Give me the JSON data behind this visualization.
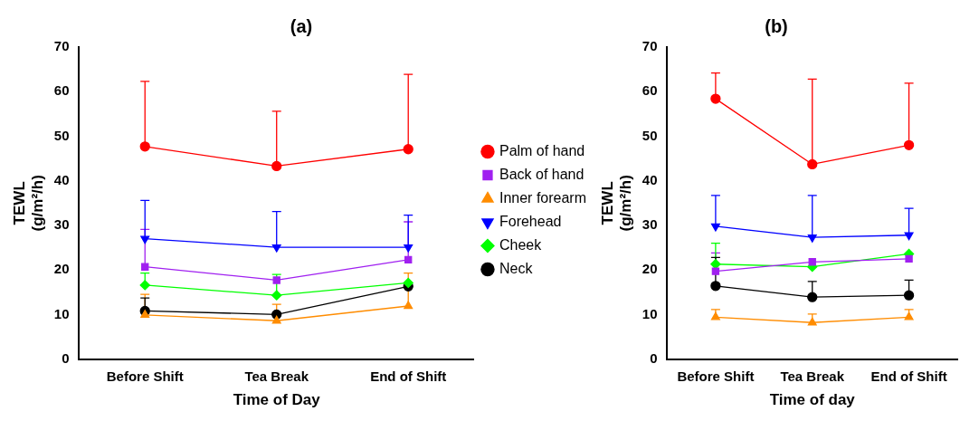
{
  "chart_data": [
    {
      "type": "line",
      "title": "(a)",
      "xlabel": "Time of Day",
      "ylabel": "TEWL (g/m²/h)",
      "categories": [
        "Before Shift",
        "Tea Break",
        "End of Shift"
      ],
      "ylim": [
        0,
        70
      ],
      "yticks": [
        0,
        10,
        20,
        30,
        40,
        50,
        60,
        70
      ],
      "grid": false,
      "legend": "right",
      "series": [
        {
          "name": "Palm of hand",
          "color": "#ff0000",
          "marker": "circle",
          "values": [
            47.7,
            43.3,
            47.1
          ],
          "errors": [
            [
              47.7,
              62.3
            ],
            [
              43.3,
              55.6
            ],
            [
              47.1,
              63.9
            ]
          ]
        },
        {
          "name": "Back of hand",
          "color": "#a020f0",
          "marker": "square",
          "values": [
            20.7,
            17.7,
            22.3
          ],
          "errors": [
            [
              20.7,
              29.1
            ],
            null,
            [
              22.3,
              30.8
            ]
          ]
        },
        {
          "name": "Inner forearm",
          "color": "#ff8c00",
          "marker": "triangle",
          "values": [
            9.9,
            8.6,
            11.9
          ],
          "errors": [
            [
              9.9,
              14.5
            ],
            [
              8.6,
              12.3
            ],
            [
              11.9,
              19.3
            ]
          ]
        },
        {
          "name": "Forehead",
          "color": "#0000ff",
          "marker": "triangle-down",
          "values": [
            27.0,
            25.1,
            25.1
          ],
          "errors": [
            [
              27.0,
              35.6
            ],
            [
              25.1,
              33.1
            ],
            [
              25.1,
              32.3
            ]
          ]
        },
        {
          "name": "Cheek",
          "color": "#00ff00",
          "marker": "diamond",
          "values": [
            16.6,
            14.3,
            17.1
          ],
          "errors": [
            [
              16.6,
              19.3
            ],
            [
              14.3,
              19.0
            ],
            null
          ]
        },
        {
          "name": "Neck",
          "color": "#000000",
          "marker": "circle",
          "values": [
            10.8,
            10.0,
            16.3
          ],
          "errors": [
            [
              10.8,
              13.7
            ],
            null,
            null
          ]
        }
      ]
    },
    {
      "type": "line",
      "title": "(b)",
      "xlabel": "Time of day",
      "ylabel": "TEWL (g/m²/h)",
      "categories": [
        "Before Shift",
        "Tea Break",
        "End of Shift"
      ],
      "ylim": [
        0,
        70
      ],
      "yticks": [
        0,
        10,
        20,
        30,
        40,
        50,
        60,
        70
      ],
      "grid": false,
      "series": [
        {
          "color": "#ff0000",
          "marker": "circle",
          "values": [
            58.4,
            43.7,
            48.0
          ],
          "errors": [
            [
              58.4,
              64.2
            ],
            [
              43.7,
              62.8
            ],
            [
              48.0,
              61.9
            ]
          ]
        },
        {
          "color": "#a020f0",
          "marker": "square",
          "values": [
            19.7,
            21.8,
            22.5
          ],
          "errors": [
            [
              19.7,
              23.8
            ],
            null,
            null
          ]
        },
        {
          "color": "#ff8c00",
          "marker": "triangle",
          "values": [
            9.4,
            8.2,
            9.4
          ],
          "errors": [
            [
              9.4,
              11.1
            ],
            [
              8.2,
              10.1
            ],
            [
              9.4,
              11.1
            ]
          ]
        },
        {
          "color": "#0000ff",
          "marker": "triangle-down",
          "values": [
            29.8,
            27.3,
            27.8
          ],
          "errors": [
            [
              29.8,
              36.7
            ],
            [
              27.3,
              36.7
            ],
            [
              27.8,
              33.8
            ]
          ]
        },
        {
          "color": "#00ff00",
          "marker": "diamond",
          "values": [
            21.3,
            20.7,
            23.6
          ],
          "errors": [
            [
              21.3,
              26.0
            ],
            null,
            null
          ]
        },
        {
          "color": "#000000",
          "marker": "circle",
          "values": [
            16.4,
            13.9,
            14.3
          ],
          "errors": [
            [
              16.4,
              22.8
            ],
            [
              13.9,
              17.4
            ],
            [
              14.3,
              17.7
            ]
          ]
        }
      ]
    }
  ]
}
